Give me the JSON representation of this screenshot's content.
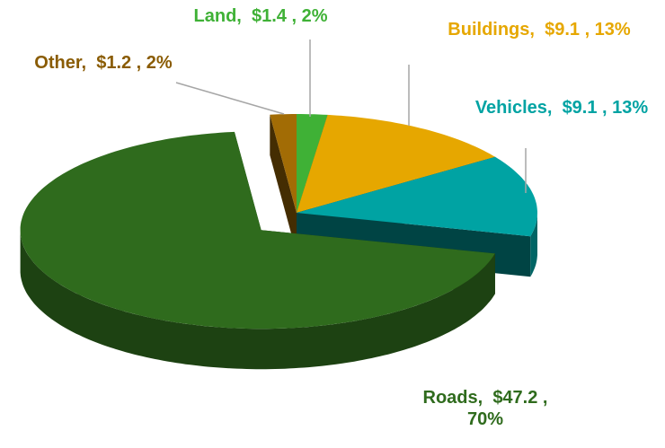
{
  "chart_data": {
    "type": "pie3d",
    "categories": [
      "Land,",
      "Buildings,",
      "Vehicles,",
      "Roads,",
      "Other,"
    ],
    "values": [
      1.4,
      9.1,
      9.1,
      47.2,
      1.2
    ],
    "value_labels": [
      "$1.4 , 2%",
      "$9.1 , 13%",
      "$9.1 , 13%",
      "$47.2 , 70%",
      "$1.2 , 2%"
    ],
    "colors": [
      "#3fb136",
      "#e6a700",
      "#00a3a3",
      "#2f6b1d",
      "#a26c05"
    ],
    "exploded": [
      false,
      false,
      false,
      true,
      false
    ]
  }
}
